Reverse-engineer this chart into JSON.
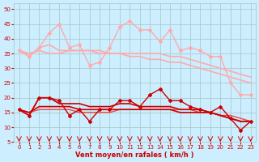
{
  "x": [
    0,
    1,
    2,
    3,
    4,
    5,
    6,
    7,
    8,
    9,
    10,
    11,
    12,
    13,
    14,
    15,
    16,
    17,
    18,
    19,
    20,
    21,
    22,
    23
  ],
  "series": [
    {
      "y": [
        36,
        34,
        37,
        42,
        45,
        37,
        38,
        31,
        32,
        37,
        44,
        46,
        43,
        43,
        39,
        43,
        36,
        37,
        36,
        34,
        34,
        25,
        21,
        21
      ],
      "color": "#ffaaaa",
      "lw": 1.0,
      "marker": "D",
      "ms": 2.0,
      "zorder": 2
    },
    {
      "y": [
        36,
        34,
        37,
        38,
        36,
        36,
        36,
        36,
        36,
        35,
        35,
        34,
        34,
        33,
        33,
        32,
        32,
        31,
        30,
        29,
        28,
        27,
        26,
        25
      ],
      "color": "#ffaaaa",
      "lw": 1.2,
      "marker": null,
      "ms": 0,
      "zorder": 2
    },
    {
      "y": [
        36,
        35,
        36,
        35,
        35,
        36,
        36,
        36,
        35,
        35,
        35,
        35,
        35,
        35,
        35,
        34,
        34,
        33,
        32,
        31,
        30,
        29,
        28,
        27
      ],
      "color": "#ffaaaa",
      "lw": 1.2,
      "marker": null,
      "ms": 0,
      "zorder": 2
    },
    {
      "y": [
        16,
        14,
        20,
        20,
        19,
        14,
        16,
        12,
        16,
        16,
        19,
        19,
        17,
        21,
        23,
        19,
        19,
        17,
        16,
        15,
        17,
        13,
        9,
        12
      ],
      "color": "#cc0000",
      "lw": 1.0,
      "marker": "D",
      "ms": 2.0,
      "zorder": 3
    },
    {
      "y": [
        16,
        14,
        20,
        20,
        18,
        18,
        18,
        17,
        17,
        17,
        18,
        18,
        17,
        17,
        17,
        17,
        16,
        16,
        16,
        15,
        14,
        13,
        12,
        12
      ],
      "color": "#cc0000",
      "lw": 1.2,
      "marker": null,
      "ms": 0,
      "zorder": 3
    },
    {
      "y": [
        16,
        15,
        17,
        17,
        17,
        17,
        16,
        16,
        16,
        16,
        16,
        16,
        16,
        16,
        16,
        16,
        15,
        15,
        15,
        15,
        14,
        13,
        12,
        12
      ],
      "color": "#cc0000",
      "lw": 1.2,
      "marker": null,
      "ms": 0,
      "zorder": 3
    },
    {
      "y": [
        16,
        15,
        16,
        16,
        16,
        16,
        15,
        15,
        15,
        15,
        16,
        16,
        16,
        16,
        16,
        16,
        16,
        16,
        15,
        15,
        14,
        14,
        13,
        12
      ],
      "color": "#ee4444",
      "lw": 1.0,
      "marker": null,
      "ms": 0,
      "zorder": 2
    }
  ],
  "xlim": [
    -0.5,
    23.5
  ],
  "ylim": [
    5,
    52
  ],
  "yticks": [
    5,
    10,
    15,
    20,
    25,
    30,
    35,
    40,
    45,
    50
  ],
  "xticks": [
    0,
    1,
    2,
    3,
    4,
    5,
    6,
    7,
    8,
    9,
    10,
    11,
    12,
    13,
    14,
    15,
    16,
    17,
    18,
    19,
    20,
    21,
    22,
    23
  ],
  "xlabel": "Vent moyen/en rafales ( km/h )",
  "bg_color": "#cceeff",
  "grid_color": "#aacccc",
  "tick_color": "#cc0000",
  "label_color": "#cc0000",
  "arrow_color": "#cc0000"
}
